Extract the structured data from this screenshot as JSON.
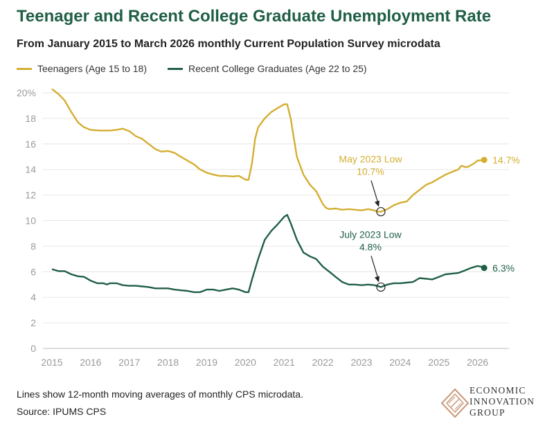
{
  "header": {
    "title": "Teenager and Recent College Graduate Unemployment Rate",
    "subtitle": "From January 2015 to March 2026 monthly Current Population Survey microdata"
  },
  "footer": {
    "note": "Lines show 12-month moving averages of monthly CPS microdata.",
    "source": "Source: IPUMS CPS"
  },
  "logo": {
    "line1": "ECONOMIC",
    "line2": "INNOVATION",
    "line3": "GROUP",
    "icon": "eig-diamond-logo-icon"
  },
  "colors": {
    "teen": "#d4ae31",
    "grad": "#1f5f45",
    "grid": "#e6e6e6",
    "axis_text": "#9a9a9a"
  },
  "chart_data": {
    "type": "line",
    "xlim": [
      2015,
      2026.4
    ],
    "ylim": [
      0,
      20
    ],
    "yticks": [
      0,
      2,
      4,
      6,
      8,
      10,
      12,
      14,
      16,
      18,
      20
    ],
    "ytick_labels": [
      "0",
      "2",
      "4",
      "6",
      "8",
      "10",
      "12",
      "14",
      "16",
      "18",
      "20%"
    ],
    "xticks": [
      2015,
      2016,
      2017,
      2018,
      2019,
      2020,
      2021,
      2022,
      2023,
      2024,
      2025,
      2026
    ],
    "xtick_labels": [
      "2015",
      "2016",
      "2017",
      "2018",
      "2019",
      "2020",
      "2021",
      "2022",
      "2023",
      "2024",
      "2025",
      "2026"
    ],
    "grid": "horizontal",
    "legend_position": "top-left",
    "series": [
      {
        "name": "Teenagers (Age 15 to 18)",
        "color": "#d4ae31",
        "end_label": "14.7%",
        "points": [
          [
            2015.0,
            20.3
          ],
          [
            2015.17,
            19.9
          ],
          [
            2015.33,
            19.4
          ],
          [
            2015.5,
            18.5
          ],
          [
            2015.67,
            17.7
          ],
          [
            2015.83,
            17.3
          ],
          [
            2016.0,
            17.1
          ],
          [
            2016.25,
            17.05
          ],
          [
            2016.5,
            17.05
          ],
          [
            2016.67,
            17.1
          ],
          [
            2016.83,
            17.2
          ],
          [
            2017.0,
            17.0
          ],
          [
            2017.17,
            16.6
          ],
          [
            2017.33,
            16.4
          ],
          [
            2017.5,
            16.0
          ],
          [
            2017.67,
            15.6
          ],
          [
            2017.83,
            15.4
          ],
          [
            2018.0,
            15.45
          ],
          [
            2018.17,
            15.3
          ],
          [
            2018.33,
            15.0
          ],
          [
            2018.5,
            14.7
          ],
          [
            2018.67,
            14.4
          ],
          [
            2018.83,
            14.0
          ],
          [
            2019.0,
            13.75
          ],
          [
            2019.17,
            13.6
          ],
          [
            2019.33,
            13.5
          ],
          [
            2019.5,
            13.5
          ],
          [
            2019.67,
            13.45
          ],
          [
            2019.83,
            13.5
          ],
          [
            2019.92,
            13.35
          ],
          [
            2020.0,
            13.2
          ],
          [
            2020.08,
            13.2
          ],
          [
            2020.17,
            14.5
          ],
          [
            2020.25,
            16.4
          ],
          [
            2020.33,
            17.3
          ],
          [
            2020.5,
            18.0
          ],
          [
            2020.67,
            18.5
          ],
          [
            2020.83,
            18.8
          ],
          [
            2021.0,
            19.1
          ],
          [
            2021.08,
            19.1
          ],
          [
            2021.17,
            18.0
          ],
          [
            2021.25,
            16.5
          ],
          [
            2021.33,
            15.0
          ],
          [
            2021.5,
            13.6
          ],
          [
            2021.67,
            12.8
          ],
          [
            2021.83,
            12.3
          ],
          [
            2022.0,
            11.3
          ],
          [
            2022.08,
            11.0
          ],
          [
            2022.17,
            10.9
          ],
          [
            2022.33,
            10.95
          ],
          [
            2022.5,
            10.85
          ],
          [
            2022.67,
            10.9
          ],
          [
            2022.83,
            10.85
          ],
          [
            2023.0,
            10.8
          ],
          [
            2023.17,
            10.9
          ],
          [
            2023.33,
            10.8
          ],
          [
            2023.42,
            10.7
          ],
          [
            2023.5,
            10.7
          ],
          [
            2023.67,
            10.9
          ],
          [
            2023.83,
            11.2
          ],
          [
            2024.0,
            11.4
          ],
          [
            2024.17,
            11.5
          ],
          [
            2024.33,
            12.0
          ],
          [
            2024.5,
            12.4
          ],
          [
            2024.67,
            12.8
          ],
          [
            2024.83,
            13.0
          ],
          [
            2025.0,
            13.3
          ],
          [
            2025.17,
            13.6
          ],
          [
            2025.33,
            13.8
          ],
          [
            2025.5,
            14.0
          ],
          [
            2025.58,
            14.3
          ],
          [
            2025.67,
            14.2
          ],
          [
            2025.75,
            14.2
          ],
          [
            2025.92,
            14.5
          ],
          [
            2026.0,
            14.7
          ],
          [
            2026.17,
            14.75
          ]
        ]
      },
      {
        "name": "Recent College Graduates (Age 22 to 25)",
        "color": "#1f5f45",
        "end_label": "6.3%",
        "points": [
          [
            2015.0,
            6.2
          ],
          [
            2015.17,
            6.05
          ],
          [
            2015.33,
            6.05
          ],
          [
            2015.5,
            5.8
          ],
          [
            2015.67,
            5.65
          ],
          [
            2015.83,
            5.6
          ],
          [
            2016.0,
            5.3
          ],
          [
            2016.17,
            5.1
          ],
          [
            2016.33,
            5.1
          ],
          [
            2016.42,
            5.0
          ],
          [
            2016.5,
            5.1
          ],
          [
            2016.67,
            5.1
          ],
          [
            2016.83,
            4.95
          ],
          [
            2017.0,
            4.9
          ],
          [
            2017.17,
            4.9
          ],
          [
            2017.33,
            4.85
          ],
          [
            2017.5,
            4.8
          ],
          [
            2017.67,
            4.7
          ],
          [
            2017.83,
            4.7
          ],
          [
            2018.0,
            4.7
          ],
          [
            2018.17,
            4.6
          ],
          [
            2018.33,
            4.55
          ],
          [
            2018.5,
            4.5
          ],
          [
            2018.67,
            4.4
          ],
          [
            2018.83,
            4.4
          ],
          [
            2019.0,
            4.6
          ],
          [
            2019.17,
            4.6
          ],
          [
            2019.33,
            4.5
          ],
          [
            2019.5,
            4.6
          ],
          [
            2019.67,
            4.7
          ],
          [
            2019.83,
            4.6
          ],
          [
            2020.0,
            4.4
          ],
          [
            2020.08,
            4.4
          ],
          [
            2020.17,
            5.4
          ],
          [
            2020.33,
            7.0
          ],
          [
            2020.5,
            8.5
          ],
          [
            2020.67,
            9.2
          ],
          [
            2020.83,
            9.7
          ],
          [
            2021.0,
            10.3
          ],
          [
            2021.08,
            10.45
          ],
          [
            2021.17,
            9.8
          ],
          [
            2021.33,
            8.5
          ],
          [
            2021.5,
            7.5
          ],
          [
            2021.67,
            7.2
          ],
          [
            2021.83,
            7.0
          ],
          [
            2022.0,
            6.4
          ],
          [
            2022.17,
            6.0
          ],
          [
            2022.33,
            5.6
          ],
          [
            2022.5,
            5.2
          ],
          [
            2022.67,
            5.0
          ],
          [
            2022.83,
            5.0
          ],
          [
            2023.0,
            4.95
          ],
          [
            2023.17,
            5.0
          ],
          [
            2023.33,
            4.95
          ],
          [
            2023.5,
            4.8
          ],
          [
            2023.67,
            5.0
          ],
          [
            2023.83,
            5.1
          ],
          [
            2024.0,
            5.1
          ],
          [
            2024.17,
            5.15
          ],
          [
            2024.33,
            5.2
          ],
          [
            2024.5,
            5.5
          ],
          [
            2024.67,
            5.45
          ],
          [
            2024.83,
            5.4
          ],
          [
            2025.0,
            5.6
          ],
          [
            2025.17,
            5.8
          ],
          [
            2025.33,
            5.85
          ],
          [
            2025.5,
            5.9
          ],
          [
            2025.67,
            6.1
          ],
          [
            2025.83,
            6.3
          ],
          [
            2026.0,
            6.45
          ],
          [
            2026.08,
            6.4
          ],
          [
            2026.17,
            6.3
          ]
        ]
      }
    ],
    "annotations": [
      {
        "series": 0,
        "x": 2023.5,
        "y": 10.7,
        "label_line1": "May 2023 Low",
        "label_line2": "10.7%"
      },
      {
        "series": 1,
        "x": 2023.5,
        "y": 4.8,
        "label_line1": "July 2023 Low",
        "label_line2": "4.8%"
      }
    ]
  }
}
